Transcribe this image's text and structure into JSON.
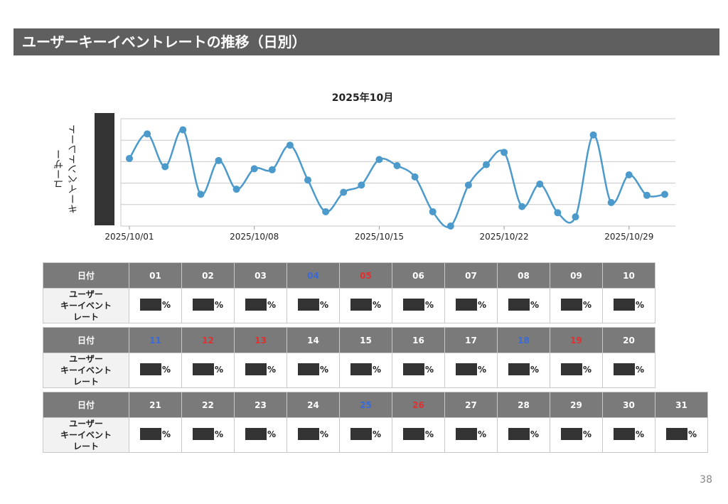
{
  "header": {
    "title": "ユーザーキーイベントレートの推移（日別）"
  },
  "chart_data": {
    "type": "line",
    "title": "2025年10月",
    "ylabel": "ユーザー\nキーイベントレート",
    "xlabel": "",
    "x_tick_labels": [
      "2025/10/01",
      "2025/10/08",
      "2025/10/15",
      "2025/10/22",
      "2025/10/29"
    ],
    "y_tick_labels_redacted": true,
    "grid": true,
    "series": [
      {
        "color": "#4b9acb",
        "x": [
          "2025/10/01",
          "2025/10/02",
          "2025/10/03",
          "2025/10/04",
          "2025/10/05",
          "2025/10/06",
          "2025/10/07",
          "2025/10/08",
          "2025/10/09",
          "2025/10/10",
          "2025/10/11",
          "2025/10/12",
          "2025/10/13",
          "2025/10/14",
          "2025/10/15",
          "2025/10/16",
          "2025/10/17",
          "2025/10/18",
          "2025/10/19",
          "2025/10/20",
          "2025/10/21",
          "2025/10/22",
          "2025/10/23",
          "2025/10/24",
          "2025/10/25",
          "2025/10/26",
          "2025/10/27",
          "2025/10/28",
          "2025/10/29",
          "2025/10/30",
          "2025/10/31"
        ],
        "values": [
          0.66,
          0.9,
          0.58,
          0.94,
          0.31,
          0.64,
          0.36,
          0.56,
          0.55,
          0.79,
          0.45,
          0.14,
          0.33,
          0.4,
          0.65,
          0.59,
          0.48,
          0.14,
          0.0,
          0.4,
          0.6,
          0.72,
          0.19,
          0.41,
          0.13,
          0.09,
          0.89,
          0.23,
          0.5,
          0.3,
          0.31
        ]
      }
    ]
  },
  "table": {
    "row_label_date": "日付",
    "row_label_value": "ユーザー\nキーイベント\nレート",
    "pct": "%",
    "blocks": [
      {
        "days": [
          {
            "d": "01",
            "c": ""
          },
          {
            "d": "02",
            "c": ""
          },
          {
            "d": "03",
            "c": ""
          },
          {
            "d": "04",
            "c": "blue"
          },
          {
            "d": "05",
            "c": "red"
          },
          {
            "d": "06",
            "c": ""
          },
          {
            "d": "07",
            "c": ""
          },
          {
            "d": "08",
            "c": ""
          },
          {
            "d": "09",
            "c": ""
          },
          {
            "d": "10",
            "c": ""
          }
        ]
      },
      {
        "days": [
          {
            "d": "11",
            "c": "blue"
          },
          {
            "d": "12",
            "c": "red"
          },
          {
            "d": "13",
            "c": "red"
          },
          {
            "d": "14",
            "c": ""
          },
          {
            "d": "15",
            "c": ""
          },
          {
            "d": "16",
            "c": ""
          },
          {
            "d": "17",
            "c": ""
          },
          {
            "d": "18",
            "c": "blue"
          },
          {
            "d": "19",
            "c": "red"
          },
          {
            "d": "20",
            "c": ""
          }
        ]
      },
      {
        "days": [
          {
            "d": "21",
            "c": ""
          },
          {
            "d": "22",
            "c": ""
          },
          {
            "d": "23",
            "c": ""
          },
          {
            "d": "24",
            "c": ""
          },
          {
            "d": "25",
            "c": "blue"
          },
          {
            "d": "26",
            "c": "red"
          },
          {
            "d": "27",
            "c": ""
          },
          {
            "d": "28",
            "c": ""
          },
          {
            "d": "29",
            "c": ""
          },
          {
            "d": "30",
            "c": ""
          },
          {
            "d": "31",
            "c": ""
          }
        ]
      }
    ]
  },
  "footer": {
    "page_number": "38"
  }
}
